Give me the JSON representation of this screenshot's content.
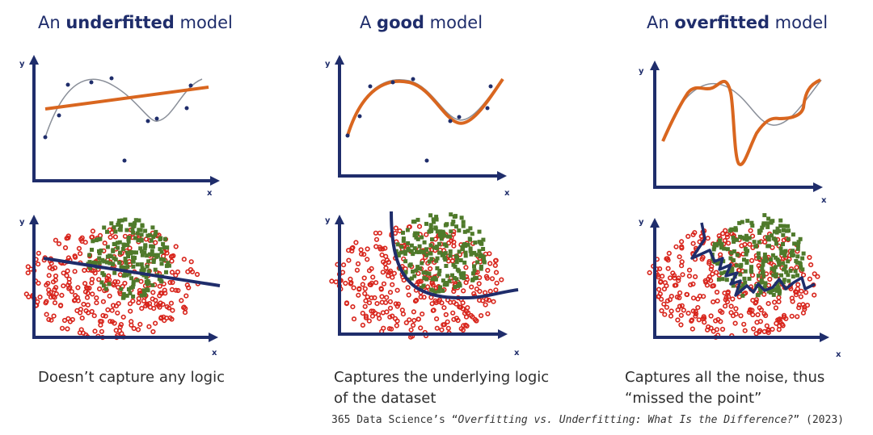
{
  "columns": [
    {
      "title_prefix": "An ",
      "title_bold": "underfitted",
      "title_suffix": " model",
      "caption_line1": "Doesn’t capture any logic",
      "caption_line2": ""
    },
    {
      "title_prefix": "A ",
      "title_bold": "good",
      "title_suffix": " model",
      "caption_line1": "Captures the underlying logic",
      "caption_line2": "of the dataset"
    },
    {
      "title_prefix": "An ",
      "title_bold": "overfitted",
      "title_suffix": " model",
      "caption_line1": "Captures all the noise, thus",
      "caption_line2": "“missed the point”"
    }
  ],
  "axis": {
    "x_label": "x",
    "y_label": "y"
  },
  "citation": {
    "prefix": "365 Data Science’s “",
    "title": "Overfitting vs. Underfitting: What Is the Difference?",
    "suffix": "” (2023)"
  },
  "colors": {
    "axis": "#1f2d6b",
    "fit_curve": "#d9661f",
    "true_curve": "#8a8f99",
    "class_a": "#d8251c",
    "class_b": "#4f7a2b",
    "boundary": "#1f2d6b"
  }
}
